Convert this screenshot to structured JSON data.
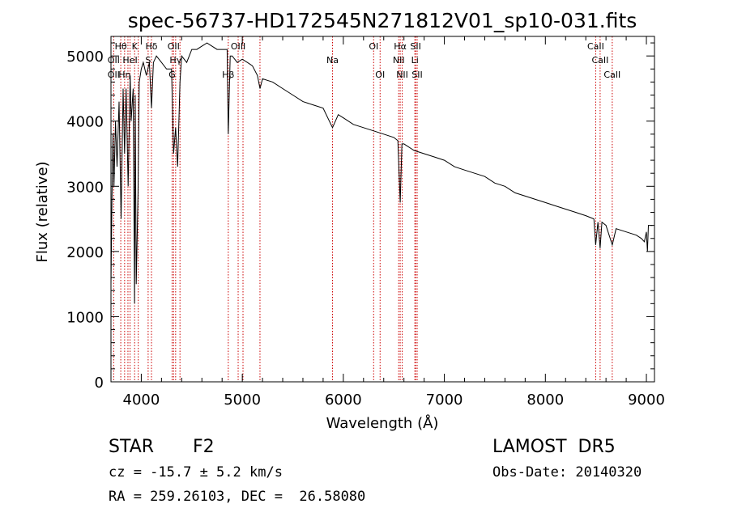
{
  "chart_data": {
    "type": "line",
    "title": "spec-56737-HD172545N271812V01_sp10-031.fits",
    "xlabel": "Wavelength (Å)",
    "ylabel": "Flux (relative)",
    "xlim": [
      3700,
      9080
    ],
    "ylim": [
      0,
      5300
    ],
    "xticks": [
      4000,
      5000,
      6000,
      7000,
      8000,
      9000
    ],
    "yticks": [
      0,
      1000,
      2000,
      3000,
      4000,
      5000
    ],
    "grid": false,
    "series": [
      {
        "x": [
          3700,
          3710,
          3720,
          3730,
          3745,
          3760,
          3780,
          3800,
          3820,
          3835,
          3850,
          3870,
          3890,
          3900,
          3920,
          3933,
          3940,
          3950,
          3968,
          3980,
          4000,
          4020,
          4050,
          4080,
          4101,
          4120,
          4150,
          4200,
          4250,
          4300,
          4320,
          4340,
          4360,
          4383,
          4400,
          4450,
          4500,
          4550,
          4600,
          4650,
          4700,
          4750,
          4800,
          4850,
          4861,
          4880,
          4900,
          4950,
          5000,
          5050,
          5100,
          5150,
          5175,
          5200,
          5300,
          5400,
          5500,
          5600,
          5700,
          5800,
          5893,
          5950,
          6000,
          6100,
          6200,
          6300,
          6400,
          6500,
          6540,
          6563,
          6580,
          6600,
          6700,
          6800,
          6900,
          7000,
          7100,
          7200,
          7300,
          7400,
          7500,
          7600,
          7700,
          7800,
          7900,
          8000,
          8100,
          8200,
          8300,
          8400,
          8480,
          8498,
          8520,
          8542,
          8560,
          8600,
          8662,
          8700,
          8800,
          8900,
          8950,
          8980,
          9000,
          9010,
          9020,
          9030,
          9050,
          9060
        ],
        "y": [
          1500,
          2800,
          3800,
          3000,
          4000,
          3300,
          4300,
          2500,
          4500,
          3500,
          4500,
          3000,
          4700,
          4000,
          4500,
          1200,
          4400,
          1500,
          2900,
          4600,
          4800,
          4900,
          4700,
          4900,
          4200,
          4900,
          5000,
          4900,
          4800,
          4800,
          3500,
          3900,
          3300,
          4600,
          5000,
          4900,
          5100,
          5100,
          5150,
          5200,
          5150,
          5100,
          5100,
          5100,
          3800,
          5000,
          5000,
          4900,
          4950,
          4900,
          4850,
          4700,
          4500,
          4650,
          4600,
          4500,
          4400,
          4300,
          4250,
          4200,
          3900,
          4100,
          4050,
          3950,
          3900,
          3850,
          3800,
          3750,
          3700,
          2750,
          3650,
          3650,
          3550,
          3500,
          3450,
          3400,
          3300,
          3250,
          3200,
          3150,
          3050,
          3000,
          2900,
          2850,
          2800,
          2750,
          2700,
          2650,
          2600,
          2550,
          2500,
          2100,
          2450,
          2050,
          2450,
          2400,
          2100,
          2350,
          2300,
          2250,
          2200,
          2150,
          2300,
          2000,
          2400,
          2400,
          2400,
          2400
        ]
      }
    ],
    "lines": [
      {
        "label": "Hθ",
        "wl": 3797,
        "row": 1
      },
      {
        "label": "K",
        "wl": 3934,
        "row": 1
      },
      {
        "label": "Hδ",
        "wl": 4101,
        "row": 1
      },
      {
        "label": "OII",
        "wl": 4320,
        "row": 1
      },
      {
        "label": "OIII",
        "wl": 4959,
        "row": 1
      },
      {
        "label": "OI",
        "wl": 6300,
        "row": 1
      },
      {
        "label": "Hα",
        "wl": 6563,
        "row": 1
      },
      {
        "label": "SII",
        "wl": 6716,
        "row": 1
      },
      {
        "label": "CaII",
        "wl": 8498,
        "row": 1
      },
      {
        "label": "OII",
        "wl": 3727,
        "row": 2
      },
      {
        "label": "HeI",
        "wl": 3889,
        "row": 2
      },
      {
        "label": "S",
        "wl": 4068,
        "row": 2
      },
      {
        "label": "Hγ",
        "wl": 4340,
        "row": 2
      },
      {
        "label": "Na",
        "wl": 5893,
        "row": 2
      },
      {
        "label": "NII",
        "wl": 6548,
        "row": 2
      },
      {
        "label": "Li",
        "wl": 6708,
        "row": 2
      },
      {
        "label": "CaII",
        "wl": 8542,
        "row": 2
      },
      {
        "label": "OII",
        "wl": 3727,
        "row": 3
      },
      {
        "label": "Hη",
        "wl": 3835,
        "row": 3
      },
      {
        "label": "G",
        "wl": 4305,
        "row": 3
      },
      {
        "label": "Hβ",
        "wl": 4861,
        "row": 3
      },
      {
        "label": "OI",
        "wl": 6364,
        "row": 3
      },
      {
        "label": "NII",
        "wl": 6583,
        "row": 3
      },
      {
        "label": "SII",
        "wl": 6731,
        "row": 3
      },
      {
        "label": "CaII",
        "wl": 8662,
        "row": 3
      },
      {
        "label": "",
        "wl": 3868,
        "row": 0
      },
      {
        "label": "",
        "wl": 3970,
        "row": 0
      },
      {
        "label": "",
        "wl": 4383,
        "row": 0
      },
      {
        "label": "",
        "wl": 5007,
        "row": 0
      },
      {
        "label": "",
        "wl": 5175,
        "row": 0
      }
    ]
  },
  "info": {
    "class": "STAR",
    "subclass": "F2",
    "survey": "LAMOST  DR5",
    "cz": "cz = -15.7 ± 5.2 km/s",
    "obs_date": "Obs-Date: 20140320",
    "radec": "RA = 259.26103, DEC =  26.58080"
  }
}
